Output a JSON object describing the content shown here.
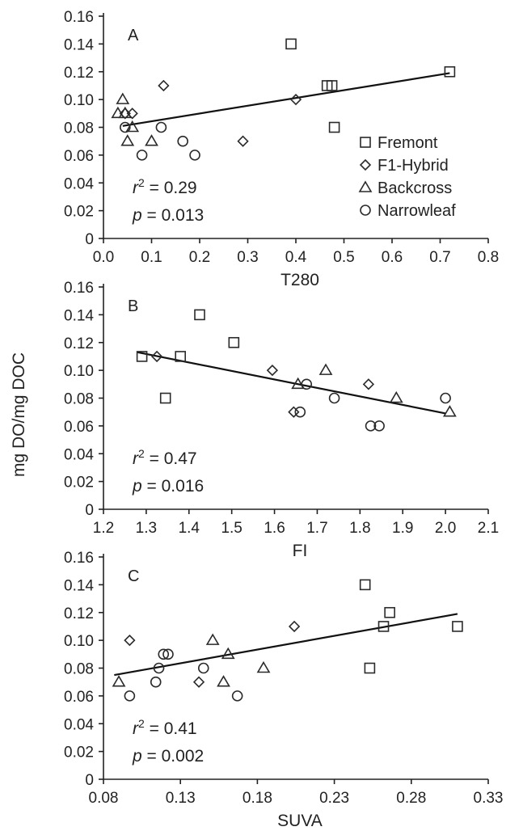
{
  "figure": {
    "shared_ylabel": "mg DO/mg DOC"
  },
  "legend": {
    "items": [
      {
        "label": "Fremont",
        "marker": "square"
      },
      {
        "label": "F1-Hybrid",
        "marker": "diamond"
      },
      {
        "label": "Backcross",
        "marker": "triangle"
      },
      {
        "label": "Narrowleaf",
        "marker": "circle"
      }
    ]
  },
  "chart_data": [
    {
      "type": "scatter",
      "panel": "A",
      "xlabel": "T280",
      "ylabel": "mg DO/mg DOC",
      "xlim": [
        0.0,
        0.8
      ],
      "ylim": [
        0,
        0.16
      ],
      "x_ticks": [
        "0.0",
        "0.1",
        "0.2",
        "0.3",
        "0.4",
        "0.5",
        "0.6",
        "0.7",
        "0.8"
      ],
      "y_ticks": [
        "0",
        "0.02",
        "0.04",
        "0.06",
        "0.08",
        "0.10",
        "0.12",
        "0.14",
        "0.16"
      ],
      "grid": false,
      "stats": {
        "r2_label": "r",
        "r2_exp": "2",
        "r2_value": " = 0.29",
        "p_label": "p",
        "p_value": " = 0.013"
      },
      "fit": {
        "x": [
          0.04,
          0.72
        ],
        "y": [
          0.081,
          0.119
        ]
      },
      "series": [
        {
          "name": "Fremont",
          "marker": "square",
          "x": [
            0.39,
            0.465,
            0.475,
            0.48,
            0.72
          ],
          "y": [
            0.14,
            0.11,
            0.11,
            0.08,
            0.12
          ]
        },
        {
          "name": "F1-Hybrid",
          "marker": "diamond",
          "x": [
            0.045,
            0.06,
            0.125,
            0.29,
            0.4
          ],
          "y": [
            0.09,
            0.09,
            0.11,
            0.07,
            0.1
          ]
        },
        {
          "name": "Backcross",
          "marker": "triangle",
          "x": [
            0.03,
            0.04,
            0.045,
            0.05,
            0.06,
            0.1
          ],
          "y": [
            0.09,
            0.1,
            0.09,
            0.07,
            0.08,
            0.07
          ]
        },
        {
          "name": "Narrowleaf",
          "marker": "circle",
          "x": [
            0.045,
            0.08,
            0.12,
            0.165,
            0.19
          ],
          "y": [
            0.08,
            0.06,
            0.08,
            0.07,
            0.06
          ]
        }
      ]
    },
    {
      "type": "scatter",
      "panel": "B",
      "xlabel": "FI",
      "ylabel": "mg DO/mg DOC",
      "xlim": [
        1.2,
        2.1
      ],
      "ylim": [
        0,
        0.16
      ],
      "x_ticks": [
        "1.2",
        "1.3",
        "1.4",
        "1.5",
        "1.6",
        "1.7",
        "1.8",
        "1.9",
        "2.0",
        "2.1"
      ],
      "y_ticks": [
        "0",
        "0.02",
        "0.04",
        "0.06",
        "0.08",
        "0.10",
        "0.12",
        "0.14",
        "0.16"
      ],
      "grid": false,
      "stats": {
        "r2_label": "r",
        "r2_exp": "2",
        "r2_value": " = 0.47",
        "p_label": "p",
        "p_value": " = 0.016"
      },
      "fit": {
        "x": [
          1.28,
          2.0
        ],
        "y": [
          0.113,
          0.069
        ]
      },
      "series": [
        {
          "name": "Fremont",
          "marker": "square",
          "x": [
            1.29,
            1.345,
            1.38,
            1.425,
            1.505
          ],
          "y": [
            0.11,
            0.08,
            0.11,
            0.14,
            0.12
          ]
        },
        {
          "name": "F1-Hybrid",
          "marker": "diamond",
          "x": [
            1.325,
            1.595,
            1.645,
            1.82
          ],
          "y": [
            0.11,
            0.1,
            0.07,
            0.09
          ]
        },
        {
          "name": "Backcross",
          "marker": "triangle",
          "x": [
            1.655,
            1.72,
            1.885,
            2.01
          ],
          "y": [
            0.09,
            0.1,
            0.08,
            0.07
          ]
        },
        {
          "name": "Narrowleaf",
          "marker": "circle",
          "x": [
            1.66,
            1.675,
            1.74,
            1.825,
            1.845,
            2.0
          ],
          "y": [
            0.07,
            0.09,
            0.08,
            0.06,
            0.06,
            0.08
          ]
        }
      ]
    },
    {
      "type": "scatter",
      "panel": "C",
      "xlabel": "SUVA",
      "ylabel": "mg DO/mg DOC",
      "xlim": [
        0.08,
        0.33
      ],
      "ylim": [
        0,
        0.16
      ],
      "x_ticks": [
        "0.08",
        "0.13",
        "0.18",
        "0.23",
        "0.28",
        "0.33"
      ],
      "y_ticks": [
        "0",
        "0.02",
        "0.04",
        "0.06",
        "0.08",
        "0.10",
        "0.12",
        "0.14",
        "0.16"
      ],
      "grid": false,
      "stats": {
        "r2_label": "r",
        "r2_exp": "2",
        "r2_value": " = 0.41",
        "p_label": "p",
        "p_value": " = 0.002"
      },
      "fit": {
        "x": [
          0.087,
          0.31
        ],
        "y": [
          0.075,
          0.119
        ]
      },
      "series": [
        {
          "name": "Fremont",
          "marker": "square",
          "x": [
            0.25,
            0.253,
            0.262,
            0.266,
            0.31
          ],
          "y": [
            0.14,
            0.08,
            0.11,
            0.12,
            0.11
          ]
        },
        {
          "name": "F1-Hybrid",
          "marker": "diamond",
          "x": [
            0.097,
            0.142,
            0.204
          ],
          "y": [
            0.1,
            0.07,
            0.11
          ]
        },
        {
          "name": "Backcross",
          "marker": "triangle",
          "x": [
            0.09,
            0.151,
            0.158,
            0.161,
            0.184
          ],
          "y": [
            0.07,
            0.1,
            0.07,
            0.09,
            0.08
          ]
        },
        {
          "name": "Narrowleaf",
          "marker": "circle",
          "x": [
            0.097,
            0.114,
            0.116,
            0.119,
            0.122,
            0.145,
            0.167
          ],
          "y": [
            0.06,
            0.07,
            0.08,
            0.09,
            0.09,
            0.08,
            0.06
          ]
        }
      ]
    }
  ]
}
